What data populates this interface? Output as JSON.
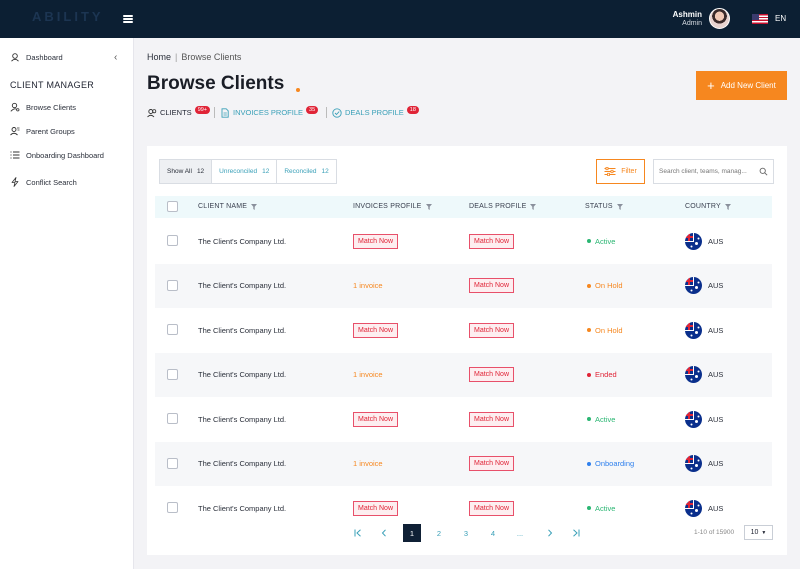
{
  "header": {
    "logo_text": "ABILITY",
    "user_name": "Ashmin",
    "user_role": "Admin",
    "language": "EN"
  },
  "sidebar": {
    "dashboard_label": "Dashboard",
    "section_heading": "CLIENT MANAGER",
    "items": [
      {
        "label": "Browse Clients",
        "icon": "user-search-icon"
      },
      {
        "label": "Parent Groups",
        "icon": "users-icon"
      },
      {
        "label": "Onboarding Dashboard",
        "icon": "list-icon"
      },
      {
        "label": "Conflict Search",
        "icon": "bolt-icon"
      }
    ]
  },
  "breadcrumb": {
    "home": "Home",
    "separator": "|",
    "current": "Browse Clients"
  },
  "page": {
    "title": "Browse Clients",
    "add_button": "Add New Client",
    "accent_color": "#f6871f"
  },
  "profile_tabs": [
    {
      "label": "CLIENTS",
      "badge": "99+"
    },
    {
      "label": "INVOICES PROFILE",
      "badge": "35"
    },
    {
      "label": "DEALS PROFILE",
      "badge": "18"
    }
  ],
  "segments": [
    {
      "label": "Show All",
      "count": "12"
    },
    {
      "label": "Unreconciled",
      "count": "12"
    },
    {
      "label": "Reconciled",
      "count": "12"
    }
  ],
  "filter_label": "Filter",
  "search": {
    "placeholder": "Search client, teams, manag..."
  },
  "table": {
    "columns": [
      "CLIENT NAME",
      "INVOICES PROFILE",
      "DEALS PROFILE",
      "STATUS",
      "COUNTRY"
    ],
    "rows": [
      {
        "client": "The Client's Company Ltd.",
        "invoices": "Match Now",
        "invoices_type": "tag",
        "deals": "Match Now",
        "status": "Active",
        "status_color": "#2bb673",
        "country": "AUS"
      },
      {
        "client": "The Client's Company Ltd.",
        "invoices": "1 invoice",
        "invoices_type": "link",
        "deals": "Match Now",
        "status": "On Hold",
        "status_color": "#f6871f",
        "country": "AUS"
      },
      {
        "client": "The Client's Company Ltd.",
        "invoices": "Match Now",
        "invoices_type": "tag",
        "deals": "Match Now",
        "status": "On Hold",
        "status_color": "#f6871f",
        "country": "AUS"
      },
      {
        "client": "The Client's Company Ltd.",
        "invoices": "1 invoice",
        "invoices_type": "link",
        "deals": "Match Now",
        "status": "Ended",
        "status_color": "#e02437",
        "country": "AUS"
      },
      {
        "client": "The Client's Company Ltd.",
        "invoices": "Match Now",
        "invoices_type": "tag",
        "deals": "Match Now",
        "status": "Active",
        "status_color": "#2bb673",
        "country": "AUS"
      },
      {
        "client": "The Client's Company Ltd.",
        "invoices": "1 invoice",
        "invoices_type": "link",
        "deals": "Match Now",
        "status": "Onboarding",
        "status_color": "#2f80ed",
        "country": "AUS"
      },
      {
        "client": "The Client's Company Ltd.",
        "invoices": "Match Now",
        "invoices_type": "tag",
        "deals": "Match Now",
        "status": "Active",
        "status_color": "#2bb673",
        "country": "AUS"
      }
    ]
  },
  "pagination": {
    "pages": [
      "1",
      "2",
      "3",
      "4",
      "..."
    ],
    "current": "1",
    "range": "1-10 of 15900",
    "per_page": "10"
  }
}
